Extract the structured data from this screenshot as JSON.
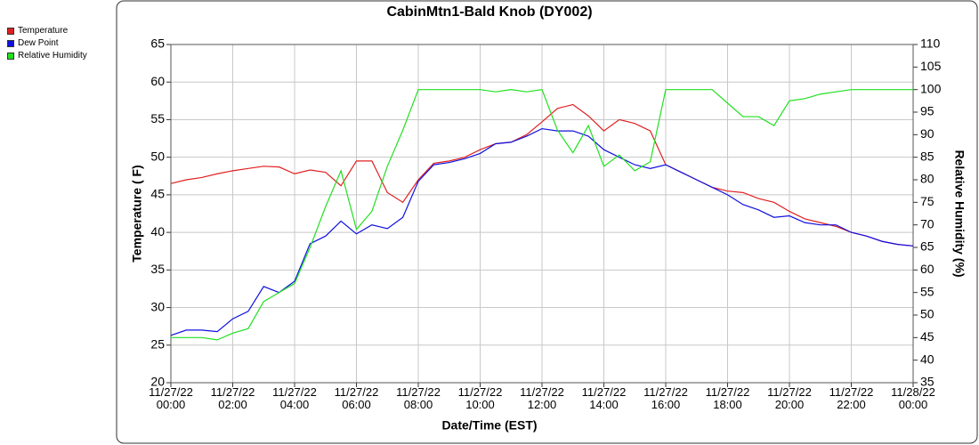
{
  "chart_data": {
    "type": "line",
    "title": "CabinMtn1-Bald Knob (DY002)",
    "x_label": "Date/Time (EST)",
    "y_label": "Temperature ( F)",
    "y2_label": "Relative Humidity (%)",
    "grid": true,
    "legend": "top-left",
    "x": [
      "11/27/22 00:00",
      "11/27/22 00:30",
      "11/27/22 01:00",
      "11/27/22 01:30",
      "11/27/22 02:00",
      "11/27/22 02:30",
      "11/27/22 03:00",
      "11/27/22 03:30",
      "11/27/22 04:00",
      "11/27/22 04:30",
      "11/27/22 05:00",
      "11/27/22 05:30",
      "11/27/22 06:00",
      "11/27/22 06:30",
      "11/27/22 07:00",
      "11/27/22 07:30",
      "11/27/22 08:00",
      "11/27/22 08:30",
      "11/27/22 09:00",
      "11/27/22 09:30",
      "11/27/22 10:00",
      "11/27/22 10:30",
      "11/27/22 11:00",
      "11/27/22 11:30",
      "11/27/22 12:00",
      "11/27/22 12:30",
      "11/27/22 13:00",
      "11/27/22 13:30",
      "11/27/22 14:00",
      "11/27/22 14:30",
      "11/27/22 15:00",
      "11/27/22 15:30",
      "11/27/22 16:00",
      "11/27/22 16:30",
      "11/27/22 17:00",
      "11/27/22 17:30",
      "11/27/22 18:00",
      "11/27/22 18:30",
      "11/27/22 19:00",
      "11/27/22 19:30",
      "11/27/22 20:00",
      "11/27/22 20:30",
      "11/27/22 21:00",
      "11/27/22 21:30",
      "11/27/22 22:00",
      "11/27/22 22:30",
      "11/27/22 23:00",
      "11/27/22 23:30",
      "11/28/22 00:00"
    ],
    "xlim": [
      "11/27/22 00:00",
      "11/28/22 00:00"
    ],
    "xticks": [
      {
        "value": "11/27/22 00:00",
        "label": "11/27/22\n00:00"
      },
      {
        "value": "11/27/22 02:00",
        "label": "11/27/22\n02:00"
      },
      {
        "value": "11/27/22 04:00",
        "label": "11/27/22\n04:00"
      },
      {
        "value": "11/27/22 06:00",
        "label": "11/27/22\n06:00"
      },
      {
        "value": "11/27/22 08:00",
        "label": "11/27/22\n08:00"
      },
      {
        "value": "11/27/22 10:00",
        "label": "11/27/22\n10:00"
      },
      {
        "value": "11/27/22 12:00",
        "label": "11/27/22\n12:00"
      },
      {
        "value": "11/27/22 14:00",
        "label": "11/27/22\n14:00"
      },
      {
        "value": "11/27/22 16:00",
        "label": "11/27/22\n16:00"
      },
      {
        "value": "11/27/22 18:00",
        "label": "11/27/22\n18:00"
      },
      {
        "value": "11/27/22 20:00",
        "label": "11/27/22\n20:00"
      },
      {
        "value": "11/27/22 22:00",
        "label": "11/27/22\n22:00"
      },
      {
        "value": "11/28/22 00:00",
        "label": "11/28/22\n00:00"
      }
    ],
    "ylim": [
      20,
      65
    ],
    "yticks": [
      20,
      25,
      30,
      35,
      40,
      45,
      50,
      55,
      60,
      65
    ],
    "y2lim": [
      35,
      110
    ],
    "y2ticks": [
      35,
      40,
      45,
      50,
      55,
      60,
      65,
      70,
      75,
      80,
      85,
      90,
      95,
      100,
      105,
      110
    ],
    "series": [
      {
        "name": "Temperature",
        "color": "#e02020",
        "values": [
          46.5,
          47,
          47.3,
          47.8,
          48.2,
          48.5,
          48.8,
          48.7,
          47.8,
          48.3,
          48,
          46.2,
          49.5,
          49.5,
          45.3,
          44,
          47,
          49.2,
          49.5,
          50,
          51,
          51.8,
          52,
          53,
          54.7,
          56.5,
          57,
          55.5,
          53.5,
          55,
          54.5,
          53.5,
          49,
          48,
          47,
          46,
          45.5,
          45.3,
          44.5,
          44,
          42.8,
          41.8,
          41.3,
          40.8,
          40,
          39.5,
          38.8,
          38.4,
          38.2
        ]
      },
      {
        "name": "Dew Point",
        "color": "#1010e0",
        "values": [
          26.3,
          27,
          27,
          26.8,
          28.5,
          29.5,
          32.8,
          32,
          33.5,
          38.5,
          39.5,
          41.5,
          39.8,
          41,
          40.5,
          42,
          46.8,
          49,
          49.3,
          49.8,
          50.5,
          51.8,
          52,
          52.8,
          53.8,
          53.5,
          53.5,
          52.8,
          51,
          50,
          49,
          48.5,
          49,
          48,
          47,
          46,
          45,
          43.7,
          43,
          42,
          42.2,
          41.3,
          41,
          41,
          40,
          39.5,
          38.8,
          38.4,
          38.2
        ]
      },
      {
        "name": "Relative Humidity",
        "color": "#20e020",
        "axis": "y2",
        "values": [
          45,
          45,
          45,
          44.5,
          46,
          47,
          53,
          55,
          57,
          65,
          74,
          82,
          69,
          73,
          83,
          91,
          100,
          100,
          100,
          100,
          100,
          99.5,
          100,
          99.5,
          100,
          91,
          86,
          92,
          83,
          85.5,
          82,
          84,
          100,
          100,
          100,
          100,
          97,
          94,
          94,
          92,
          97.5,
          98,
          99,
          99.5,
          100,
          100,
          100,
          100,
          100
        ]
      }
    ]
  }
}
